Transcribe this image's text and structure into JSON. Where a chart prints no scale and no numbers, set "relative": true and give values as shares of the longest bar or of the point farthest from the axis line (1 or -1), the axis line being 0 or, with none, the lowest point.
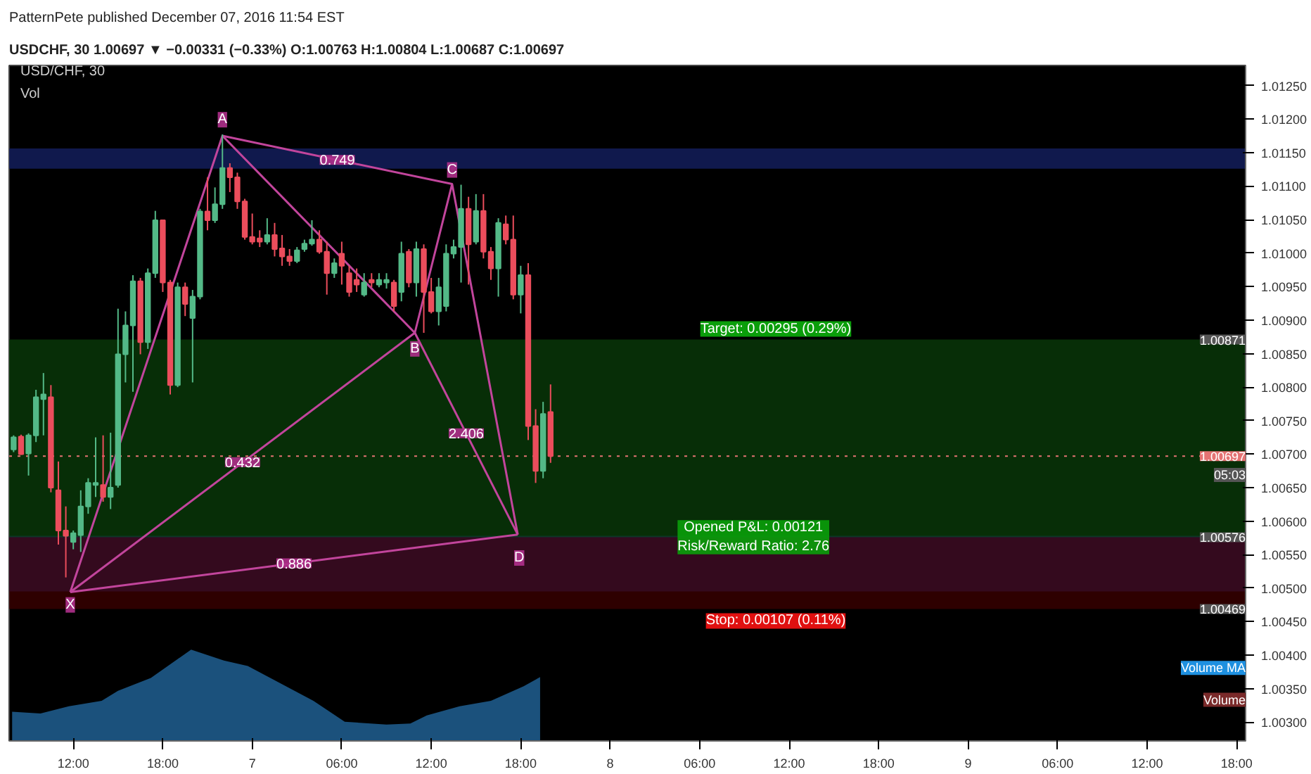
{
  "chart_data": [
    {
      "type": "candlestick",
      "title": "PatternPete published December 07, 2016 11:54 EST",
      "subtitle": "USDCHF, 30 1.00697 ▼ −0.00331 (−0.33%) O:1.00763 H:1.00804 L:1.00687 C:1.00697",
      "x": [
        "2016-12-06T08:00",
        "2016-12-06T08:30",
        "2016-12-06T09:00",
        "2016-12-06T09:30",
        "2016-12-06T10:00",
        "2016-12-06T10:30",
        "2016-12-06T11:00",
        "2016-12-06T11:30",
        "2016-12-06T12:00",
        "2016-12-06T12:30",
        "2016-12-06T13:00",
        "2016-12-06T13:30",
        "2016-12-06T14:00",
        "2016-12-06T14:30",
        "2016-12-06T15:00",
        "2016-12-06T15:30",
        "2016-12-06T16:00",
        "2016-12-06T16:30",
        "2016-12-06T17:00",
        "2016-12-06T17:30",
        "2016-12-06T18:00",
        "2016-12-06T18:30",
        "2016-12-06T19:00",
        "2016-12-06T19:30",
        "2016-12-06T20:00",
        "2016-12-06T20:30",
        "2016-12-06T21:00",
        "2016-12-06T21:30",
        "2016-12-06T22:00",
        "2016-12-06T22:30",
        "2016-12-06T23:00",
        "2016-12-06T23:30",
        "2016-12-07T00:00",
        "2016-12-07T00:30",
        "2016-12-07T01:00",
        "2016-12-07T01:30",
        "2016-12-07T02:00",
        "2016-12-07T02:30",
        "2016-12-07T03:00",
        "2016-12-07T03:30",
        "2016-12-07T04:00",
        "2016-12-07T04:30",
        "2016-12-07T05:00",
        "2016-12-07T05:30",
        "2016-12-07T06:00",
        "2016-12-07T06:30",
        "2016-12-07T07:00",
        "2016-12-07T07:30",
        "2016-12-07T08:00",
        "2016-12-07T08:30",
        "2016-12-07T09:00",
        "2016-12-07T09:30",
        "2016-12-07T10:00",
        "2016-12-07T10:30",
        "2016-12-07T11:00",
        "2016-12-07T11:30",
        "2016-12-07T12:00",
        "2016-12-07T12:30",
        "2016-12-07T13:00",
        "2016-12-07T13:30",
        "2016-12-07T14:00",
        "2016-12-07T14:30",
        "2016-12-07T15:00",
        "2016-12-07T15:30",
        "2016-12-07T16:00",
        "2016-12-07T16:30",
        "2016-12-07T17:00",
        "2016-12-07T17:30",
        "2016-12-07T18:00",
        "2016-12-07T18:30",
        "2016-12-07T19:00",
        "2016-12-07T19:30",
        "2016-12-07T20:00"
      ],
      "ohlc": [
        [
          1.00707,
          1.00728,
          1.00703,
          1.00725
        ],
        [
          1.00726,
          1.00729,
          1.00699,
          1.007
        ],
        [
          1.00701,
          1.00731,
          1.00668,
          1.00728
        ],
        [
          1.00728,
          1.00796,
          1.00718,
          1.00785
        ],
        [
          1.00782,
          1.00821,
          1.00728,
          1.00789
        ],
        [
          1.00785,
          1.00803,
          1.00643,
          1.0065
        ],
        [
          1.00646,
          1.00689,
          1.00565,
          1.00586
        ],
        [
          1.00586,
          1.00622,
          1.00516,
          1.00578
        ],
        [
          1.00569,
          1.00586,
          1.00558,
          1.00582
        ],
        [
          1.00579,
          1.00646,
          1.00554,
          1.00622
        ],
        [
          1.00622,
          1.00664,
          1.00611,
          1.00657
        ],
        [
          1.00654,
          1.00725,
          1.00636,
          1.00657
        ],
        [
          1.00654,
          1.00728,
          1.00629,
          1.00636
        ],
        [
          1.00636,
          1.00732,
          1.00618,
          1.0065
        ],
        [
          1.00654,
          1.00917,
          1.0065,
          1.00849
        ],
        [
          1.00849,
          1.00913,
          1.00807,
          1.00892
        ],
        [
          1.00892,
          1.00967,
          1.00793,
          1.00958
        ],
        [
          1.00958,
          1.00963,
          1.00849,
          1.00867
        ],
        [
          1.00867,
          1.00977,
          1.00857,
          1.0097
        ],
        [
          1.0097,
          1.01063,
          1.00963,
          1.01049
        ],
        [
          1.01049,
          1.01049,
          1.00942,
          1.00956
        ],
        [
          1.00956,
          1.0096,
          1.00789,
          1.00803
        ],
        [
          1.00803,
          1.00956,
          1.008,
          1.00949
        ],
        [
          1.00949,
          1.00956,
          1.00906,
          1.00924
        ],
        [
          1.00903,
          1.00945,
          1.00807,
          1.00935
        ],
        [
          1.00935,
          1.01066,
          1.00931,
          1.01062
        ],
        [
          1.01062,
          1.01113,
          1.01034,
          1.01049
        ],
        [
          1.01049,
          1.01098,
          1.01045,
          1.01073
        ],
        [
          1.01073,
          1.01177,
          1.01066,
          1.01127
        ],
        [
          1.01127,
          1.01134,
          1.01091,
          1.01113
        ],
        [
          1.01113,
          1.0112,
          1.01066,
          1.01077
        ],
        [
          1.01077,
          1.01081,
          1.0102,
          1.01024
        ],
        [
          1.01024,
          1.01059,
          1.01013,
          1.01017
        ],
        [
          1.01022,
          1.01034,
          1.01009,
          1.01017
        ],
        [
          1.01017,
          1.01052,
          1.01013,
          1.01027
        ],
        [
          1.01027,
          1.01045,
          1.00995,
          1.01006
        ],
        [
          1.01007,
          1.01027,
          1.00981,
          1.00995
        ],
        [
          1.00995,
          1.01006,
          1.00981,
          1.00988
        ],
        [
          1.00988,
          1.01009,
          1.00985,
          1.01004
        ],
        [
          1.01006,
          1.0102,
          1.01002,
          1.01014
        ],
        [
          1.01014,
          1.01049,
          1.01011,
          1.0102
        ],
        [
          1.0102,
          1.01034,
          1.00999,
          1.01002
        ],
        [
          1.01002,
          1.01017,
          1.00938,
          1.0097
        ],
        [
          1.0097,
          1.00992,
          1.00963,
          1.00985
        ],
        [
          1.00999,
          1.01017,
          1.00953,
          1.00981
        ],
        [
          1.0097,
          1.00981,
          1.00935,
          1.00942
        ],
        [
          1.0096,
          1.00977,
          1.00942,
          1.00953
        ],
        [
          1.00938,
          1.0097,
          1.00935,
          1.00956
        ],
        [
          1.0096,
          1.0097,
          1.00949,
          1.00956
        ],
        [
          1.00953,
          1.0097,
          1.00949,
          1.0096
        ],
        [
          1.00956,
          1.0097,
          1.00947,
          1.0096
        ],
        [
          1.00956,
          1.0096,
          1.00913,
          1.00921
        ],
        [
          1.00942,
          1.01017,
          1.00928,
          1.00999
        ],
        [
          1.01002,
          1.01006,
          1.00949,
          1.00956
        ],
        [
          1.00956,
          1.01017,
          1.00935,
          1.01006
        ],
        [
          1.01006,
          1.01013,
          1.00881,
          1.00942
        ],
        [
          1.00942,
          1.00963,
          1.0091,
          1.00913
        ],
        [
          1.00913,
          1.00963,
          1.00892,
          1.00949
        ],
        [
          1.00921,
          1.01013,
          1.00913,
          1.00999
        ],
        [
          1.00999,
          1.0102,
          1.00992,
          1.01009
        ],
        [
          1.01009,
          1.01102,
          1.00956,
          1.01066
        ],
        [
          1.01066,
          1.01084,
          1.00953,
          1.01013
        ],
        [
          1.01017,
          1.01088,
          1.01013,
          1.01063
        ],
        [
          1.01063,
          1.01088,
          1.00992,
          1.01002
        ],
        [
          1.01002,
          1.01009,
          1.0096,
          1.00977
        ],
        [
          1.00977,
          1.01052,
          1.00935,
          1.01045
        ],
        [
          1.01043,
          1.01056,
          1.01013,
          1.0102
        ],
        [
          1.0102,
          1.01056,
          1.00931,
          1.00938
        ],
        [
          1.00938,
          1.00981,
          1.0091,
          1.00967
        ],
        [
          1.00967,
          1.00985,
          1.00721,
          1.00742
        ],
        [
          1.00742,
          1.00767,
          1.00657,
          1.00675
        ],
        [
          1.00675,
          1.00778,
          1.00664,
          1.0076
        ],
        [
          1.00763,
          1.00804,
          1.00687,
          1.00697
        ]
      ],
      "series": [
        {
          "type": "line",
          "color": "#c2459c",
          "x": [
            "2016-12-06T11:48",
            "2016-12-06T22:00",
            "2016-12-07T10:54",
            "2016-12-07T13:24",
            "2016-12-07T17:48"
          ],
          "values": [
            1.00494,
            1.01175,
            1.00881,
            1.01103,
            1.0058
          ]
        },
        {
          "type": "line",
          "color": "#c2459c",
          "x": [
            "2016-12-06T11:48",
            "2016-12-07T10:54"
          ],
          "values": [
            1.00494,
            1.00881
          ]
        },
        {
          "type": "line",
          "color": "#c2459c",
          "x": [
            "2016-12-07T10:54",
            "2016-12-07T17:48"
          ],
          "values": [
            1.00881,
            1.0058
          ]
        },
        {
          "type": "line",
          "color": "#c2459c",
          "x": [
            "2016-12-06T11:48",
            "2016-12-07T17:48"
          ],
          "values": [
            1.00494,
            1.0058
          ]
        },
        {
          "type": "line",
          "color": "#c2459c",
          "x": [
            "2016-12-06T22:00",
            "2016-12-07T13:24"
          ],
          "values": [
            1.01175,
            1.01103
          ]
        }
      ],
      "xlim": [
        "2016-12-06T07:42",
        "2016-12-09T18:36"
      ],
      "ylim": [
        1.00272,
        1.0128
      ],
      "xticks": [
        {
          "value": "2016-12-06T12:00",
          "label": "12:00"
        },
        {
          "value": "2016-12-06T18:00",
          "label": "18:00"
        },
        {
          "value": "2016-12-07T00:00",
          "label": "7"
        },
        {
          "value": "2016-12-07T06:00",
          "label": "06:00"
        },
        {
          "value": "2016-12-07T12:00",
          "label": "12:00"
        },
        {
          "value": "2016-12-07T18:00",
          "label": "18:00"
        },
        {
          "value": "2016-12-08T00:00",
          "label": "8"
        },
        {
          "value": "2016-12-08T06:00",
          "label": "06:00"
        },
        {
          "value": "2016-12-08T12:00",
          "label": "12:00"
        },
        {
          "value": "2016-12-08T18:00",
          "label": "18:00"
        },
        {
          "value": "2016-12-09T00:00",
          "label": "9"
        },
        {
          "value": "2016-12-09T06:00",
          "label": "06:00"
        },
        {
          "value": "2016-12-09T12:00",
          "label": "12:00"
        },
        {
          "value": "2016-12-09T18:00",
          "label": "18:00"
        }
      ],
      "yticks": [
        {
          "value": 1.003,
          "label": "1.00300"
        },
        {
          "value": 1.0035,
          "label": "1.00350"
        },
        {
          "value": 1.004,
          "label": "1.00400"
        },
        {
          "value": 1.0045,
          "label": "1.00450"
        },
        {
          "value": 1.005,
          "label": "1.00500"
        },
        {
          "value": 1.0055,
          "label": "1.00550"
        },
        {
          "value": 1.006,
          "label": "1.00600"
        },
        {
          "value": 1.0065,
          "label": "1.00650"
        },
        {
          "value": 1.007,
          "label": "1.00700"
        },
        {
          "value": 1.0075,
          "label": "1.00750"
        },
        {
          "value": 1.008,
          "label": "1.00800"
        },
        {
          "value": 1.0085,
          "label": "1.00850"
        },
        {
          "value": 1.009,
          "label": "1.00900"
        },
        {
          "value": 1.0095,
          "label": "1.00950"
        },
        {
          "value": 1.01,
          "label": "1.01000"
        },
        {
          "value": 1.0105,
          "label": "1.01050"
        },
        {
          "value": 1.011,
          "label": "1.01100"
        },
        {
          "value": 1.0115,
          "label": "1.01150"
        },
        {
          "value": 1.012,
          "label": "1.01200"
        },
        {
          "value": 1.0125,
          "label": "1.01250"
        }
      ],
      "ref_lines": [
        {
          "axis": "y",
          "value": 1.00697,
          "label": "1.00697",
          "color": "#e57373",
          "line_style": "dotted"
        }
      ],
      "bands": [
        {
          "axis": "y",
          "from": 1.01126,
          "to": 1.01156,
          "color": "#1a2a80"
        },
        {
          "axis": "y",
          "from": 1.00495,
          "to": 1.00578,
          "color": "#1a2a80"
        },
        {
          "axis": "y",
          "from": 1.00576,
          "to": 1.00871,
          "color": "#0b4d0b",
          "label": "Target: 0.00295 (0.29%)"
        },
        {
          "axis": "y",
          "from": 1.00469,
          "to": 1.00576,
          "color": "#4d0000",
          "label": "Stop: 0.00107 (0.11%)"
        }
      ],
      "annotations": [
        "USD/CHF, 30",
        "Vol",
        {
          "text": "X",
          "x": "2016-12-06T11:48",
          "y": 1.00475
        },
        {
          "text": "A",
          "x": "2016-12-06T22:00",
          "y": 1.01199
        },
        {
          "text": "B",
          "x": "2016-12-07T10:54",
          "y": 1.00857
        },
        {
          "text": "C",
          "x": "2016-12-07T13:24",
          "y": 1.01124
        },
        {
          "text": "D",
          "x": "2016-12-07T17:54",
          "y": 1.00545
        },
        {
          "text": "0.432",
          "x": "2016-12-06T23:21",
          "y": 1.00688
        },
        {
          "text": "0.749",
          "x": "2016-12-07T05:42",
          "y": 1.01139
        },
        {
          "text": "0.886",
          "x": "2016-12-07T02:48",
          "y": 1.00537
        },
        {
          "text": "2.406",
          "x": "2016-12-07T14:21",
          "y": 1.00731
        },
        {
          "text": "Opened P&L: 0.00121\nRisk/Reward Ratio: 2.76",
          "x": "2016-12-08T09:36",
          "y": 1.00576
        },
        {
          "text": "1.00871",
          "y": 1.00871
        },
        {
          "text": "1.00576",
          "y": 1.00576
        },
        {
          "text": "1.00469",
          "y": 1.00469
        },
        {
          "text": "05:03",
          "y": 1.00669
        }
      ],
      "marker": "none",
      "grid": false,
      "tick_labels": "xy"
    },
    {
      "type": "area",
      "relative": true,
      "xlim": [
        "2016-12-06T07:42",
        "2016-12-09T18:36"
      ],
      "tick_labels": false,
      "x": [
        "2016-12-06T07:54",
        "2016-12-06T09:48",
        "2016-12-06T11:42",
        "2016-12-06T13:54",
        "2016-12-06T15:00",
        "2016-12-06T17:12",
        "2016-12-06T19:54",
        "2016-12-06T22:06",
        "2016-12-06T23:42",
        "2016-12-07T01:54",
        "2016-12-07T04:06",
        "2016-12-07T06:12",
        "2016-12-07T09:00",
        "2016-12-07T10:36",
        "2016-12-07T11:42",
        "2016-12-07T13:54",
        "2016-12-07T16:00",
        "2016-12-07T18:12",
        "2016-12-07T19:18"
      ],
      "series": [
        {
          "name": "Volume MA",
          "color": "#1e5a8a",
          "values": [
            0.32,
            0.3,
            0.38,
            0.44,
            0.55,
            0.69,
            1.0,
            0.88,
            0.82,
            0.63,
            0.44,
            0.21,
            0.18,
            0.19,
            0.28,
            0.38,
            0.44,
            0.6,
            0.7
          ]
        }
      ],
      "annotations": [
        "Volume"
      ]
    }
  ]
}
